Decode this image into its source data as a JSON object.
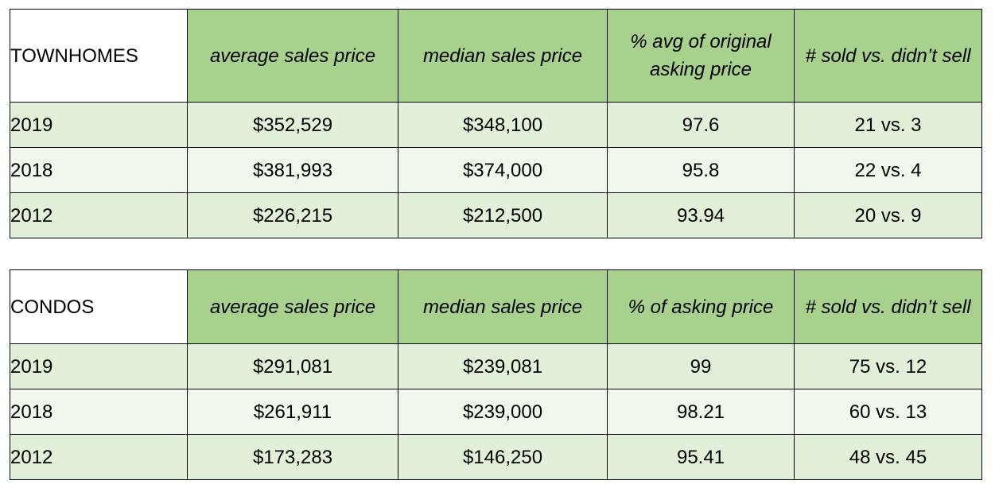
{
  "tables": [
    {
      "section_label": "TOWNHOMES",
      "headers": [
        "average sales price",
        "median sales price",
        "% avg of original asking price",
        "# sold vs. didn’t sell"
      ],
      "rows": [
        {
          "year": "2019",
          "avg": "$352,529",
          "median": "$348,100",
          "pct": "97.6",
          "sold": "21 vs. 3"
        },
        {
          "year": "2018",
          "avg": "$381,993",
          "median": "$374,000",
          "pct": "95.8",
          "sold": "22 vs. 4"
        },
        {
          "year": "2012",
          "avg": "$226,215",
          "median": "$212,500",
          "pct": "93.94",
          "sold": "20 vs. 9"
        }
      ]
    },
    {
      "section_label": "CONDOS",
      "headers": [
        "average sales price",
        "median sales price",
        "% of asking price",
        "# sold vs. didn’t sell"
      ],
      "rows": [
        {
          "year": "2019",
          "avg": "$291,081",
          "median": "$239,081",
          "pct": "99",
          "sold": "75 vs. 12"
        },
        {
          "year": "2018",
          "avg": "$261,911",
          "median": "$239,000",
          "pct": "98.21",
          "sold": "60 vs. 13"
        },
        {
          "year": "2012",
          "avg": "$173,283",
          "median": "$146,250",
          "pct": "95.41",
          "sold": "48 vs. 45"
        }
      ]
    }
  ],
  "colors": {
    "header_green": "#a9d18e",
    "row_band_dark": "#e2efd9",
    "row_band_light": "#f0f7ec",
    "border": "#000000"
  }
}
